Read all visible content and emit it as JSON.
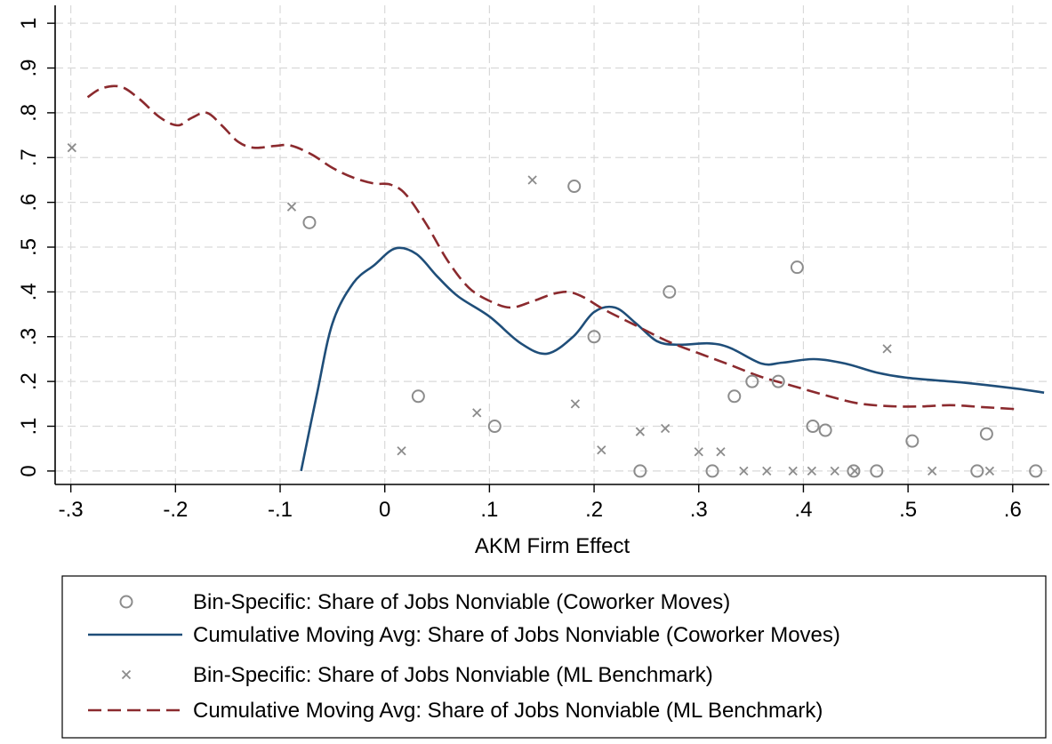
{
  "chart_data": {
    "type": "scatter",
    "xlabel": "AKM Firm Effect",
    "ylabel": "",
    "xlim": [
      -0.315,
      0.635
    ],
    "ylim": [
      -0.03,
      1.04
    ],
    "x_ticks": [
      -0.3,
      -0.2,
      -0.1,
      0,
      0.1,
      0.2,
      0.3,
      0.4,
      0.5,
      0.6
    ],
    "x_tick_labels": [
      "-.3",
      "-.2",
      "-.1",
      "0",
      ".1",
      ".2",
      ".3",
      ".4",
      ".5",
      ".6"
    ],
    "y_ticks": [
      0,
      0.1,
      0.2,
      0.3,
      0.4,
      0.5,
      0.6,
      0.7,
      0.8,
      0.9,
      1.0
    ],
    "y_tick_labels": [
      "0",
      ".1",
      ".2",
      ".3",
      ".4",
      ".5",
      ".6",
      ".7",
      ".8",
      ".9",
      "1"
    ],
    "grid": true,
    "legend_position": "bottom",
    "series": [
      {
        "name": "Bin-Specific: Share of Jobs Nonviable (Coworker Moves)",
        "kind": "scatter",
        "marker": "circle",
        "color": "#8c8c8c",
        "points": [
          [
            -0.072,
            0.555
          ],
          [
            0.032,
            0.167
          ],
          [
            0.105,
            0.1
          ],
          [
            0.181,
            0.636
          ],
          [
            0.2,
            0.3
          ],
          [
            0.244,
            0.0
          ],
          [
            0.272,
            0.4
          ],
          [
            0.313,
            0.0
          ],
          [
            0.334,
            0.167
          ],
          [
            0.351,
            0.2
          ],
          [
            0.376,
            0.2
          ],
          [
            0.394,
            0.455
          ],
          [
            0.409,
            0.1
          ],
          [
            0.421,
            0.091
          ],
          [
            0.448,
            0.0
          ],
          [
            0.47,
            0.0
          ],
          [
            0.504,
            0.067
          ],
          [
            0.566,
            0.0
          ],
          [
            0.575,
            0.083
          ],
          [
            0.622,
            0.0
          ]
        ]
      },
      {
        "name": "Cumulative Moving Avg: Share of Jobs Nonviable (Coworker Moves)",
        "kind": "line",
        "dash": "solid",
        "color": "#1f4e79",
        "points": [
          [
            -0.08,
            0.0
          ],
          [
            -0.065,
            0.17
          ],
          [
            -0.05,
            0.33
          ],
          [
            -0.03,
            0.42
          ],
          [
            -0.01,
            0.46
          ],
          [
            0.01,
            0.497
          ],
          [
            0.03,
            0.485
          ],
          [
            0.05,
            0.435
          ],
          [
            0.07,
            0.39
          ],
          [
            0.1,
            0.345
          ],
          [
            0.13,
            0.285
          ],
          [
            0.155,
            0.262
          ],
          [
            0.18,
            0.3
          ],
          [
            0.2,
            0.355
          ],
          [
            0.22,
            0.365
          ],
          [
            0.24,
            0.33
          ],
          [
            0.26,
            0.29
          ],
          [
            0.28,
            0.282
          ],
          [
            0.31,
            0.285
          ],
          [
            0.33,
            0.275
          ],
          [
            0.36,
            0.24
          ],
          [
            0.38,
            0.242
          ],
          [
            0.41,
            0.25
          ],
          [
            0.44,
            0.24
          ],
          [
            0.47,
            0.22
          ],
          [
            0.5,
            0.208
          ],
          [
            0.55,
            0.198
          ],
          [
            0.6,
            0.185
          ],
          [
            0.63,
            0.175
          ]
        ]
      },
      {
        "name": "Bin-Specific: Share of Jobs Nonviable (ML Benchmark)",
        "kind": "scatter",
        "marker": "x",
        "color": "#8c8c8c",
        "points": [
          [
            -0.299,
            0.722
          ],
          [
            -0.089,
            0.59
          ],
          [
            0.016,
            0.045
          ],
          [
            0.088,
            0.13
          ],
          [
            0.141,
            0.65
          ],
          [
            0.182,
            0.15
          ],
          [
            0.207,
            0.047
          ],
          [
            0.244,
            0.088
          ],
          [
            0.268,
            0.095
          ],
          [
            0.3,
            0.043
          ],
          [
            0.321,
            0.043
          ],
          [
            0.343,
            0.0
          ],
          [
            0.365,
            0.0
          ],
          [
            0.39,
            0.0
          ],
          [
            0.408,
            0.0
          ],
          [
            0.43,
            0.0
          ],
          [
            0.449,
            0.0
          ],
          [
            0.48,
            0.273
          ],
          [
            0.523,
            0.0
          ],
          [
            0.578,
            0.0
          ]
        ]
      },
      {
        "name": "Cumulative Moving Avg: Share of Jobs Nonviable (ML Benchmark)",
        "kind": "line",
        "dash": "dashed",
        "color": "#8b2a2e",
        "points": [
          [
            -0.284,
            0.835
          ],
          [
            -0.27,
            0.855
          ],
          [
            -0.252,
            0.858
          ],
          [
            -0.235,
            0.832
          ],
          [
            -0.215,
            0.79
          ],
          [
            -0.198,
            0.772
          ],
          [
            -0.185,
            0.788
          ],
          [
            -0.17,
            0.8
          ],
          [
            -0.155,
            0.77
          ],
          [
            -0.14,
            0.735
          ],
          [
            -0.125,
            0.722
          ],
          [
            -0.105,
            0.726
          ],
          [
            -0.09,
            0.727
          ],
          [
            -0.07,
            0.707
          ],
          [
            -0.05,
            0.677
          ],
          [
            -0.03,
            0.655
          ],
          [
            -0.01,
            0.642
          ],
          [
            0.005,
            0.64
          ],
          [
            0.02,
            0.618
          ],
          [
            0.04,
            0.55
          ],
          [
            0.06,
            0.47
          ],
          [
            0.08,
            0.41
          ],
          [
            0.1,
            0.38
          ],
          [
            0.12,
            0.365
          ],
          [
            0.14,
            0.378
          ],
          [
            0.16,
            0.395
          ],
          [
            0.175,
            0.4
          ],
          [
            0.19,
            0.388
          ],
          [
            0.21,
            0.36
          ],
          [
            0.24,
            0.325
          ],
          [
            0.27,
            0.29
          ],
          [
            0.3,
            0.263
          ],
          [
            0.33,
            0.237
          ],
          [
            0.36,
            0.21
          ],
          [
            0.39,
            0.19
          ],
          [
            0.42,
            0.17
          ],
          [
            0.45,
            0.152
          ],
          [
            0.48,
            0.145
          ],
          [
            0.51,
            0.144
          ],
          [
            0.54,
            0.147
          ],
          [
            0.57,
            0.143
          ],
          [
            0.605,
            0.138
          ]
        ]
      }
    ]
  }
}
